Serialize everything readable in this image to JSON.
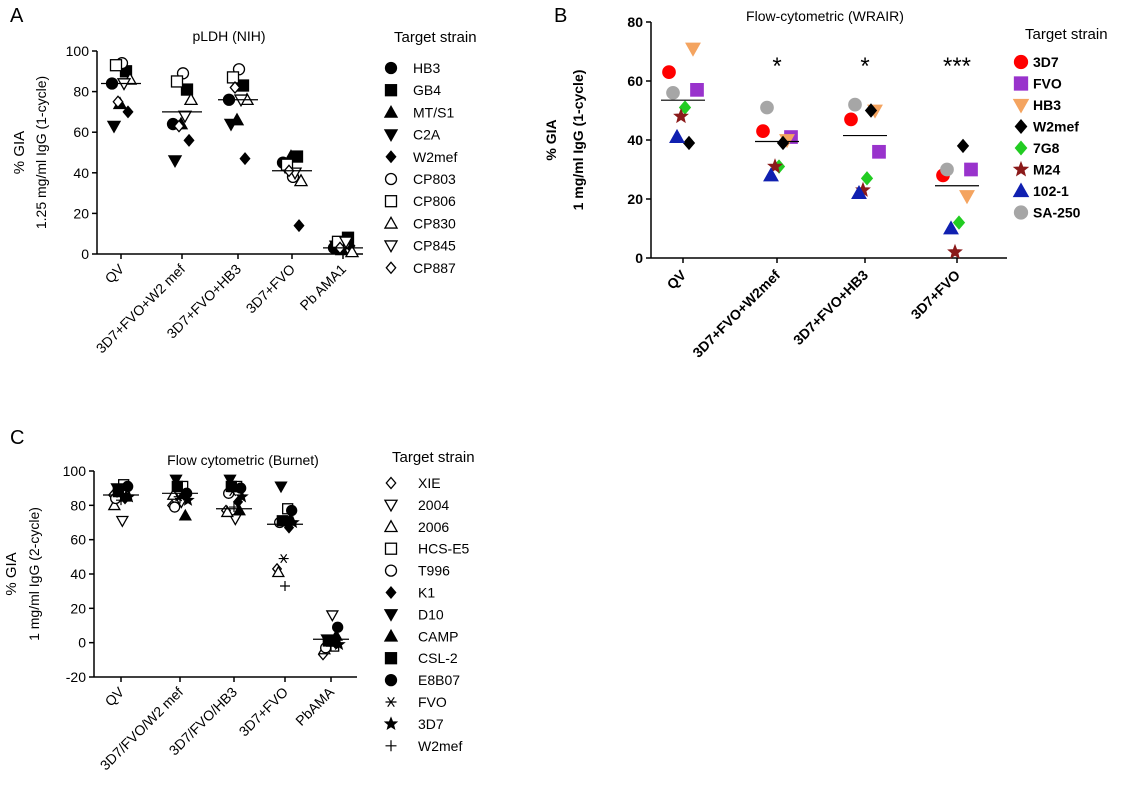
{
  "chart_data": [
    {
      "panel": "A",
      "type": "scatter",
      "title": "pLDH (NIH)",
      "ylabel": [
        "% GIA",
        "1.25 mg/ml IgG (1-cycle)"
      ],
      "ylim": [
        0,
        100
      ],
      "yticks": [
        "0",
        "20",
        "40",
        "60",
        "80",
        "100"
      ],
      "categories": [
        "QV",
        "3D7+FVO+W2 mef",
        "3D7+FVO+HB3",
        "3D7+FVO",
        "Pb AMA1"
      ],
      "means": [
        84,
        70,
        76,
        41,
        3
      ],
      "legend_title": "Target strain",
      "series": [
        {
          "name": "HB3",
          "marker": "circle-filled",
          "values": [
            84,
            64,
            76,
            45,
            3
          ]
        },
        {
          "name": "GB4",
          "marker": "square-filled",
          "values": [
            90,
            81,
            83,
            48,
            8
          ]
        },
        {
          "name": "MT/S1",
          "marker": "triangle-up-filled",
          "values": [
            74,
            64,
            66,
            48,
            2
          ]
        },
        {
          "name": "C2A",
          "marker": "triangle-down-filled",
          "values": [
            63,
            46,
            64,
            43,
            4
          ]
        },
        {
          "name": "W2mef",
          "marker": "diamond-filled",
          "values": [
            70,
            56,
            47,
            14,
            4
          ]
        },
        {
          "name": "CP803",
          "marker": "circle-open",
          "values": [
            94,
            89,
            91,
            38,
            5
          ]
        },
        {
          "name": "CP806",
          "marker": "square-open",
          "values": [
            93,
            85,
            87,
            44,
            6
          ]
        },
        {
          "name": "CP830",
          "marker": "triangle-up-open",
          "values": [
            86,
            76,
            76,
            36,
            1
          ]
        },
        {
          "name": "CP845",
          "marker": "triangle-down-open",
          "values": [
            84,
            68,
            76,
            40,
            6
          ]
        },
        {
          "name": "CP887",
          "marker": "diamond-open",
          "values": [
            75,
            63,
            82,
            41,
            3
          ]
        }
      ]
    },
    {
      "panel": "B",
      "type": "scatter",
      "title": "Flow-cytometric (WRAIR)",
      "ylabel": [
        "% GIA",
        "1 mg/ml IgG (1-cycle)"
      ],
      "ylim": [
        0,
        80
      ],
      "yticks": [
        "0",
        "20",
        "40",
        "60",
        "80"
      ],
      "categories": [
        "QV",
        "3D7+FVO+W2mef",
        "3D7+FVO+HB3",
        "3D7+FVO"
      ],
      "means": [
        53.5,
        39.5,
        41.5,
        24.5
      ],
      "significance": [
        "",
        "*",
        "*",
        "***"
      ],
      "legend_title": "Target strain",
      "series": [
        {
          "name": "3D7",
          "marker": "circle-filled",
          "color": "#ff0000",
          "values": [
            63,
            43,
            47,
            28
          ]
        },
        {
          "name": "FVO",
          "marker": "square-filled",
          "color": "#9933cc",
          "values": [
            57,
            41,
            36,
            30
          ]
        },
        {
          "name": "HB3",
          "marker": "triangle-down-filled",
          "color": "#f4a460",
          "values": [
            71,
            40,
            50,
            21
          ]
        },
        {
          "name": "W2mef",
          "marker": "diamond-filled",
          "color": "#000000",
          "values": [
            39,
            39,
            50,
            38
          ]
        },
        {
          "name": "7G8",
          "marker": "diamond-filled",
          "color": "#22cc22",
          "values": [
            51,
            31,
            27,
            12
          ]
        },
        {
          "name": "M24",
          "marker": "star-filled",
          "color": "#8b1a1a",
          "values": [
            48,
            31,
            23,
            2
          ]
        },
        {
          "name": "102-1",
          "marker": "triangle-up-filled",
          "color": "#1020b0",
          "values": [
            41,
            28,
            22,
            10
          ]
        },
        {
          "name": "SA-250",
          "marker": "circle-filled",
          "color": "#a6a6a6",
          "values": [
            56,
            51,
            52,
            30
          ]
        }
      ]
    },
    {
      "panel": "C",
      "type": "scatter",
      "title": "Flow cytometric (Burnet)",
      "ylabel": [
        "% GIA",
        "1 mg/ml IgG (2-cycle)"
      ],
      "ylim": [
        -20,
        100
      ],
      "yticks": [
        "-20",
        "0",
        "20",
        "40",
        "60",
        "80",
        "100"
      ],
      "categories": [
        "QV",
        "3D7/FVO/W2 mef",
        "3D7/FVO/HB3",
        "3D7+FVO",
        "PbAMA"
      ],
      "means": [
        86,
        87,
        78,
        69,
        2
      ],
      "legend_title": "Target strain",
      "series": [
        {
          "name": "XIE",
          "marker": "diamond-open",
          "values": [
            86,
            80,
            77,
            43,
            -7
          ]
        },
        {
          "name": "2004",
          "marker": "triangle-down-open",
          "values": [
            71,
            82,
            72,
            70,
            16
          ]
        },
        {
          "name": "2006",
          "marker": "triangle-up-open",
          "values": [
            80,
            86,
            76,
            41,
            -4
          ]
        },
        {
          "name": "HCS-E5",
          "marker": "square-open",
          "values": [
            92,
            91,
            91,
            78,
            -2
          ]
        },
        {
          "name": "T996",
          "marker": "circle-open",
          "values": [
            84,
            79,
            87,
            70,
            -3
          ]
        },
        {
          "name": "K1",
          "marker": "diamond-filled",
          "values": [
            84,
            86,
            82,
            67,
            0
          ]
        },
        {
          "name": "D10",
          "marker": "triangle-down-filled",
          "values": [
            90,
            95,
            95,
            91,
            2
          ]
        },
        {
          "name": "CAMP",
          "marker": "triangle-up-filled",
          "values": [
            85,
            74,
            77,
            72,
            4
          ]
        },
        {
          "name": "CSL-2",
          "marker": "square-filled",
          "values": [
            88,
            91,
            91,
            71,
            1
          ]
        },
        {
          "name": "E8B07",
          "marker": "circle-filled",
          "values": [
            91,
            87,
            90,
            77,
            9
          ]
        },
        {
          "name": "FVO",
          "marker": "asterisk",
          "values": [
            87,
            85,
            88,
            49,
            1
          ]
        },
        {
          "name": "3D7",
          "marker": "star-filled",
          "values": [
            85,
            83,
            85,
            70,
            -1
          ]
        },
        {
          "name": "W2mef",
          "marker": "plus",
          "values": [
            83,
            84,
            79,
            33,
            -2
          ]
        }
      ]
    }
  ],
  "panel_letters": [
    "A",
    "B",
    "C"
  ]
}
